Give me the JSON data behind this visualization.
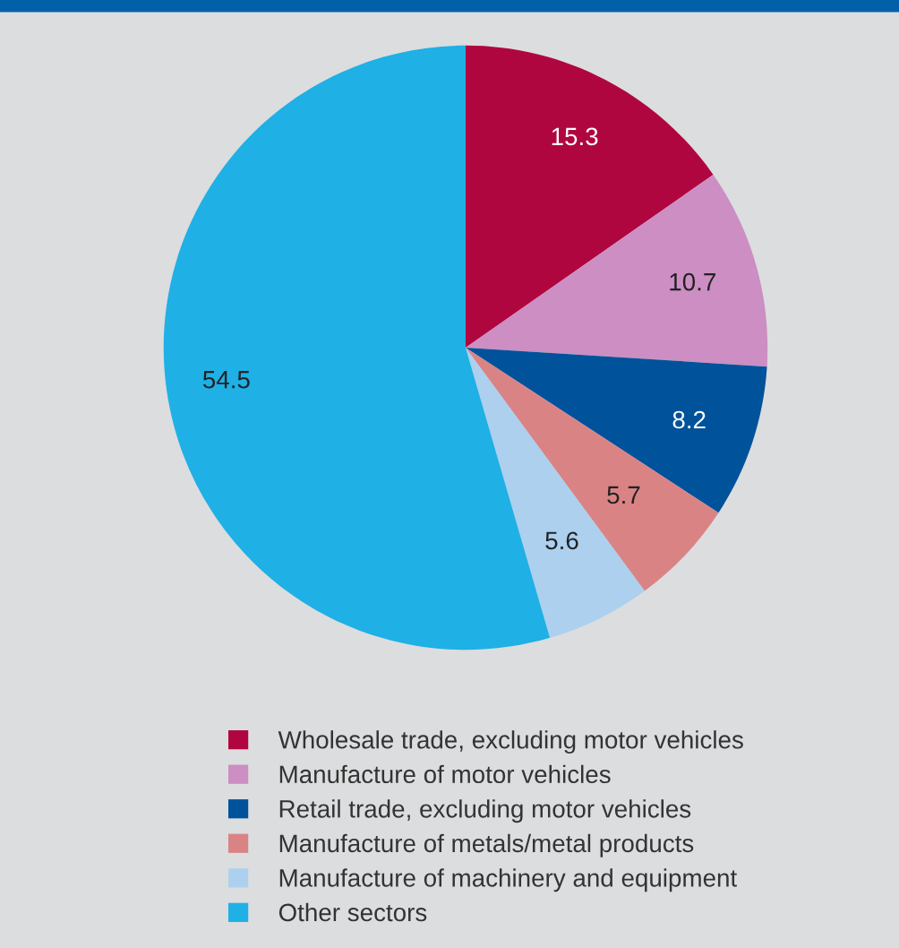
{
  "chart_data": {
    "type": "pie",
    "categories": [
      "Wholesale trade, excluding motor vehicles",
      "Manufacture of motor vehicles",
      "Retail trade, excluding motor vehicles",
      "Manufacture of metals/metal products",
      "Manufacture of machinery and equipment",
      "Other sectors"
    ],
    "values": [
      15.3,
      10.7,
      8.2,
      5.7,
      5.6,
      54.5
    ],
    "colors": [
      "#b0063f",
      "#cc8ec3",
      "#00529b",
      "#da8385",
      "#acd0ee",
      "#1fb0e6"
    ],
    "data_labels": true,
    "legend": "bottom"
  }
}
